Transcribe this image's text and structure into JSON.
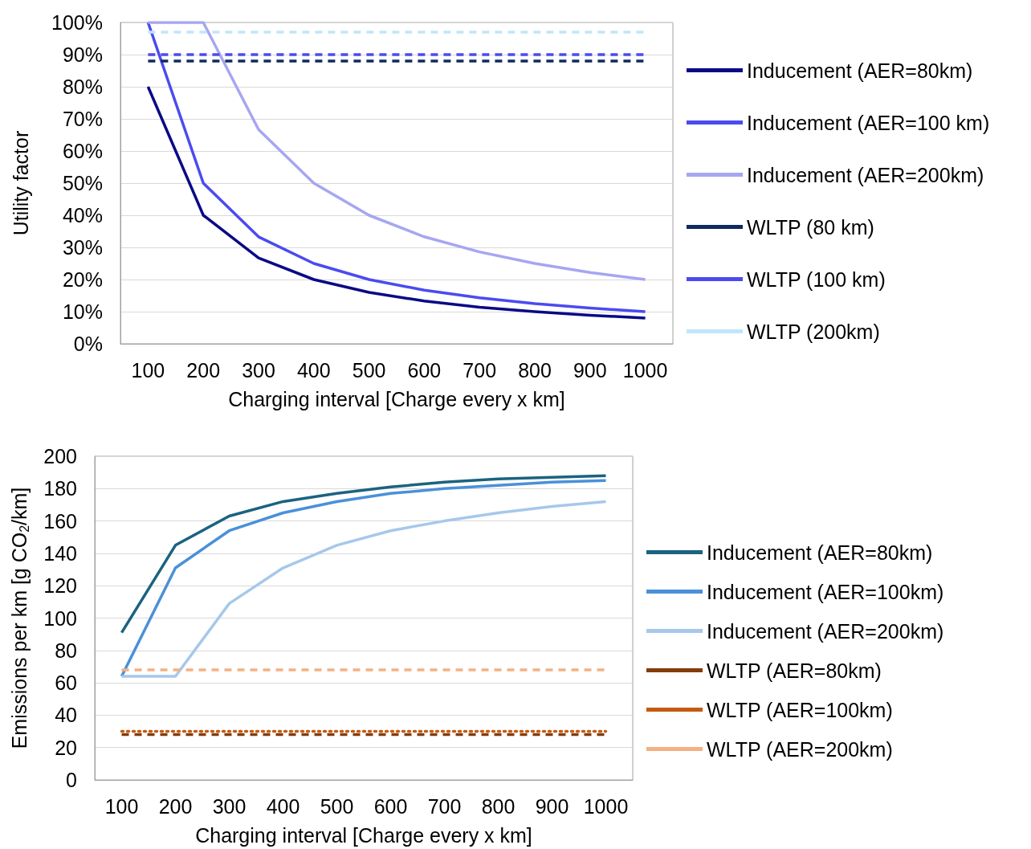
{
  "chart_data": [
    {
      "type": "line",
      "categories": [
        "100",
        "200",
        "300",
        "400",
        "500",
        "600",
        "700",
        "800",
        "900",
        "1000"
      ],
      "xlabel": "Charging interval [Charge every x km]",
      "ylabel": "Utility factor",
      "ylim": [
        0,
        100
      ],
      "yticks": [
        {
          "value": 0,
          "label": "0%"
        },
        {
          "value": 10,
          "label": "10%"
        },
        {
          "value": 20,
          "label": "20%"
        },
        {
          "value": 30,
          "label": "30%"
        },
        {
          "value": 40,
          "label": "40%"
        },
        {
          "value": 50,
          "label": "50%"
        },
        {
          "value": 60,
          "label": "60%"
        },
        {
          "value": 70,
          "label": "70%"
        },
        {
          "value": 80,
          "label": "80%"
        },
        {
          "value": 90,
          "label": "90%"
        },
        {
          "value": 100,
          "label": "100%"
        }
      ],
      "grid": "y",
      "legend": "right",
      "marker": "none",
      "series": [
        {
          "name": "Inducement (AER=80km)",
          "color": "#0a0a86",
          "line_style": "solid",
          "values": [
            80,
            40,
            26.7,
            20,
            16,
            13.3,
            11.4,
            10,
            8.9,
            8
          ]
        },
        {
          "name": "Inducement (AER=100 km)",
          "color": "#4b4bf0",
          "line_style": "solid",
          "values": [
            100,
            50,
            33.3,
            25,
            20,
            16.7,
            14.3,
            12.5,
            11.1,
            10
          ]
        },
        {
          "name": "Inducement (AER=200km)",
          "color": "#a6a6f2",
          "line_style": "solid",
          "values": [
            100,
            100,
            66.7,
            50,
            40,
            33.3,
            28.6,
            25,
            22.2,
            20
          ]
        },
        {
          "name": "WLTP (80 km)",
          "color": "#102a5c",
          "line_style": "dashed",
          "values": [
            88,
            88,
            88,
            88,
            88,
            88,
            88,
            88,
            88,
            88
          ]
        },
        {
          "name": "WLTP (100 km)",
          "color": "#4b4bf0",
          "line_style": "dashed",
          "values": [
            90,
            90,
            90,
            90,
            90,
            90,
            90,
            90,
            90,
            90
          ]
        },
        {
          "name": "WLTP (200km)",
          "color": "#bfe6fa",
          "line_style": "dashed",
          "values": [
            97,
            97,
            97,
            97,
            97,
            97,
            97,
            97,
            97,
            97
          ]
        }
      ]
    },
    {
      "type": "line",
      "categories": [
        "100",
        "200",
        "300",
        "400",
        "500",
        "600",
        "700",
        "800",
        "900",
        "1000"
      ],
      "xlabel": "Charging interval [Charge every x km]",
      "ylabel": "Emissions per km [g CO$_{2}$/km]",
      "ylim": [
        0,
        200
      ],
      "yticks": [
        0,
        20,
        40,
        60,
        80,
        100,
        120,
        140,
        160,
        180,
        200
      ],
      "grid": "y",
      "legend": "right",
      "marker": "none",
      "series": [
        {
          "name": "Inducement (AER=80km)",
          "color": "#1b6380",
          "line_style": "solid",
          "values": [
            91,
            145,
            163,
            172,
            177,
            181,
            184,
            186,
            187,
            188
          ]
        },
        {
          "name": "Inducement (AER=100km)",
          "color": "#4a90d9",
          "line_style": "solid",
          "values": [
            64,
            131,
            154,
            165,
            172,
            177,
            180,
            182,
            184,
            185
          ]
        },
        {
          "name": "Inducement (AER=200km)",
          "color": "#a6c8ea",
          "line_style": "solid",
          "values": [
            64,
            64,
            109,
            131,
            145,
            154,
            160,
            165,
            169,
            172
          ]
        },
        {
          "name": "WLTP (AER=80km)",
          "color": "#843c0c",
          "line_style": "dashed",
          "values": [
            28,
            28,
            28,
            28,
            28,
            28,
            28,
            28,
            28,
            28
          ]
        },
        {
          "name": "WLTP (AER=100km)",
          "color": "#c55a11",
          "line_style": "dotted",
          "values": [
            30,
            30,
            30,
            30,
            30,
            30,
            30,
            30,
            30,
            30
          ]
        },
        {
          "name": "WLTP (AER=200km)",
          "color": "#f4b183",
          "line_style": "dashed",
          "values": [
            68,
            68,
            68,
            68,
            68,
            68,
            68,
            68,
            68,
            68
          ]
        }
      ]
    }
  ]
}
